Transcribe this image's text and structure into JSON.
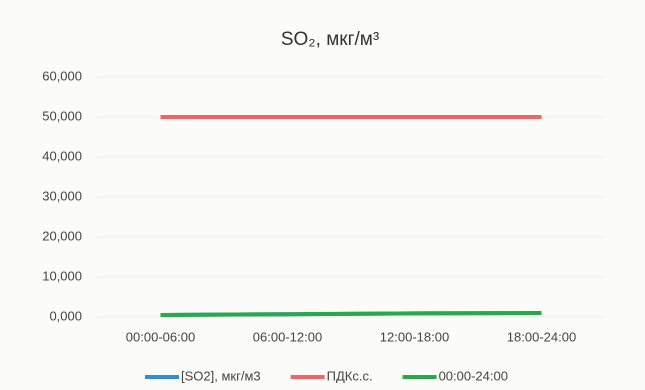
{
  "chart_data": {
    "type": "line",
    "title": "SO₂, мкг/м³",
    "categories": [
      "00:00-06:00",
      "06:00-12:00",
      "12:00-18:00",
      "18:00-24:00"
    ],
    "series": [
      {
        "name": "[SO2], мкг/м3",
        "color": "#2e8fd8",
        "values": [
          0.5,
          0.7,
          0.9,
          1.0
        ]
      },
      {
        "name": "ПДКс.с.",
        "color": "#f06464",
        "values": [
          50,
          50,
          50,
          50
        ]
      },
      {
        "name": "00:00-24:00",
        "color": "#2aa84a",
        "values": [
          0.5,
          0.7,
          0.9,
          1.0
        ]
      }
    ],
    "ylim": [
      0,
      60
    ],
    "yticks": [
      {
        "value": 0,
        "label": "0,000"
      },
      {
        "value": 10,
        "label": "10,000"
      },
      {
        "value": 20,
        "label": "20,000"
      },
      {
        "value": 30,
        "label": "30,000"
      },
      {
        "value": 40,
        "label": "40,000"
      },
      {
        "value": 50,
        "label": "50,000"
      },
      {
        "value": 60,
        "label": "60,000"
      }
    ],
    "grid": true
  }
}
